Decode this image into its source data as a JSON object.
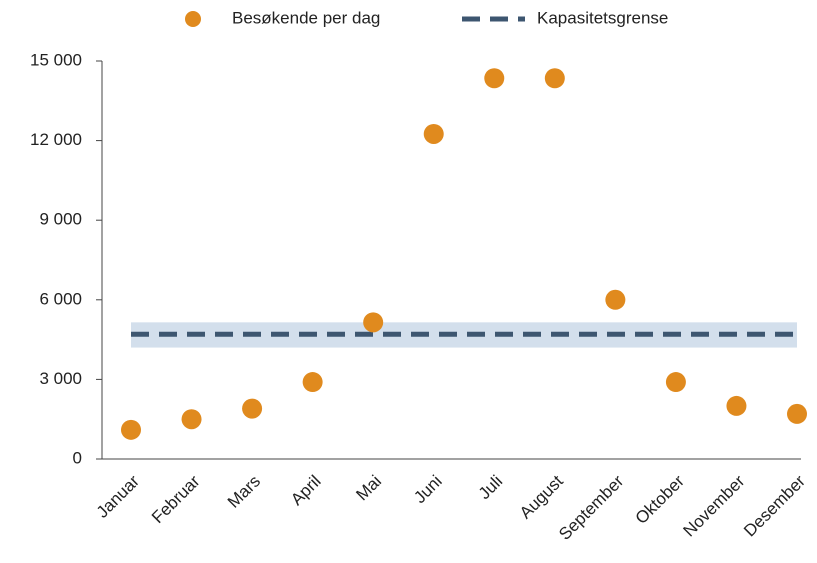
{
  "chart_data": {
    "type": "scatter",
    "categories": [
      "Januar",
      "Februar",
      "Mars",
      "April",
      "Mai",
      "Juni",
      "Juli",
      "August",
      "September",
      "Oktober",
      "November",
      "Desember"
    ],
    "series": [
      {
        "name": "Besøkende per dag",
        "color": "#e08a1e",
        "mode": "markers",
        "values": [
          1100,
          1500,
          1900,
          2900,
          5150,
          12250,
          14350,
          14350,
          6000,
          2900,
          2000,
          1700
        ]
      },
      {
        "name": "Kapasitetsgrense",
        "color": "#3d5670",
        "mode": "dashed",
        "values": [
          4700,
          4700,
          4700,
          4700,
          4700,
          4700,
          4700,
          4700,
          4700,
          4700,
          4700,
          4700
        ]
      }
    ],
    "capacity_band": {
      "range": [
        4200,
        5150
      ],
      "color": "#d3dfec"
    },
    "ylim": [
      0,
      15000
    ],
    "yticks": [
      0,
      {
        "value": 3000,
        "label": "3 000"
      },
      {
        "value": 6000,
        "label": "6 000"
      },
      {
        "value": 9000,
        "label": "9 000"
      },
      {
        "value": 12000,
        "label": "12 000"
      },
      {
        "value": 15000,
        "label": "15 000"
      }
    ],
    "legend": "top"
  }
}
